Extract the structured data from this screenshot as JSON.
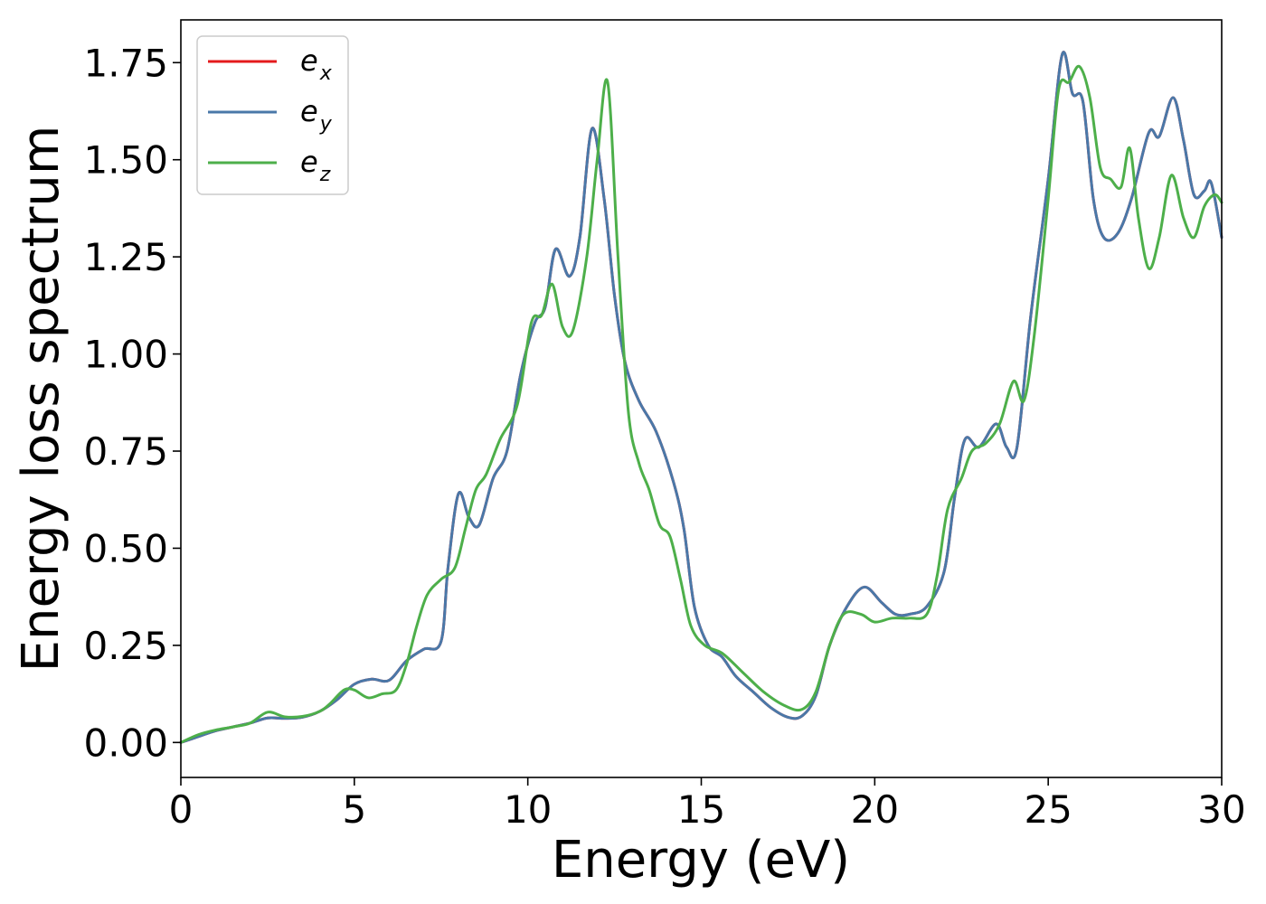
{
  "chart_data": {
    "type": "line",
    "xlabel": "Energy (eV)",
    "ylabel": "Energy loss spectrum",
    "xlim": [
      0,
      30
    ],
    "ylim": [
      -0.09,
      1.86
    ],
    "xticks": [
      0,
      5,
      10,
      15,
      20,
      25,
      30
    ],
    "xtick_labels": [
      "0",
      "5",
      "10",
      "15",
      "20",
      "25",
      "30"
    ],
    "yticks": [
      0.0,
      0.25,
      0.5,
      0.75,
      1.0,
      1.25,
      1.5,
      1.75
    ],
    "ytick_labels": [
      "0.00",
      "0.25",
      "0.50",
      "0.75",
      "1.00",
      "1.25",
      "1.50",
      "1.75"
    ],
    "grid": false,
    "legend_position": "top-left",
    "series": [
      {
        "name": "e",
        "subscript": "x",
        "color": "#e41a1c",
        "points": [
          [
            0,
            0.0
          ],
          [
            0.5,
            0.015
          ],
          [
            1,
            0.03
          ],
          [
            1.5,
            0.04
          ],
          [
            2,
            0.05
          ],
          [
            2.5,
            0.063
          ],
          [
            3,
            0.062
          ],
          [
            3.5,
            0.065
          ],
          [
            4,
            0.08
          ],
          [
            4.5,
            0.11
          ],
          [
            5,
            0.15
          ],
          [
            5.5,
            0.163
          ],
          [
            6,
            0.16
          ],
          [
            6.5,
            0.21
          ],
          [
            7,
            0.24
          ],
          [
            7.5,
            0.26
          ],
          [
            7.7,
            0.45
          ],
          [
            8,
            0.64
          ],
          [
            8.3,
            0.58
          ],
          [
            8.6,
            0.56
          ],
          [
            9,
            0.68
          ],
          [
            9.4,
            0.75
          ],
          [
            9.8,
            0.95
          ],
          [
            10.2,
            1.08
          ],
          [
            10.5,
            1.12
          ],
          [
            10.8,
            1.27
          ],
          [
            11.2,
            1.2
          ],
          [
            11.5,
            1.3
          ],
          [
            11.85,
            1.58
          ],
          [
            12.2,
            1.4
          ],
          [
            12.5,
            1.15
          ],
          [
            12.8,
            0.98
          ],
          [
            13.2,
            0.88
          ],
          [
            13.7,
            0.8
          ],
          [
            14.2,
            0.67
          ],
          [
            14.5,
            0.55
          ],
          [
            14.8,
            0.35
          ],
          [
            15.2,
            0.25
          ],
          [
            15.6,
            0.22
          ],
          [
            16,
            0.17
          ],
          [
            16.5,
            0.13
          ],
          [
            17,
            0.09
          ],
          [
            17.5,
            0.065
          ],
          [
            17.9,
            0.068
          ],
          [
            18.3,
            0.12
          ],
          [
            18.7,
            0.25
          ],
          [
            19.2,
            0.35
          ],
          [
            19.7,
            0.4
          ],
          [
            20.2,
            0.36
          ],
          [
            20.6,
            0.33
          ],
          [
            21,
            0.33
          ],
          [
            21.5,
            0.35
          ],
          [
            22,
            0.44
          ],
          [
            22.3,
            0.63
          ],
          [
            22.6,
            0.78
          ],
          [
            23,
            0.76
          ],
          [
            23.5,
            0.82
          ],
          [
            23.8,
            0.76
          ],
          [
            24.1,
            0.76
          ],
          [
            24.5,
            1.1
          ],
          [
            25,
            1.45
          ],
          [
            25.4,
            1.77
          ],
          [
            25.7,
            1.67
          ],
          [
            26,
            1.65
          ],
          [
            26.3,
            1.4
          ],
          [
            26.6,
            1.3
          ],
          [
            27,
            1.31
          ],
          [
            27.4,
            1.4
          ],
          [
            27.9,
            1.57
          ],
          [
            28.2,
            1.56
          ],
          [
            28.6,
            1.66
          ],
          [
            28.9,
            1.55
          ],
          [
            29.2,
            1.41
          ],
          [
            29.5,
            1.42
          ],
          [
            29.7,
            1.44
          ],
          [
            30,
            1.3
          ]
        ]
      },
      {
        "name": "e",
        "subscript": "y",
        "color": "#4a78a8",
        "points": [
          [
            0,
            0.0
          ],
          [
            0.5,
            0.015
          ],
          [
            1,
            0.03
          ],
          [
            1.5,
            0.04
          ],
          [
            2,
            0.05
          ],
          [
            2.5,
            0.063
          ],
          [
            3,
            0.062
          ],
          [
            3.5,
            0.065
          ],
          [
            4,
            0.08
          ],
          [
            4.5,
            0.11
          ],
          [
            5,
            0.15
          ],
          [
            5.5,
            0.163
          ],
          [
            6,
            0.16
          ],
          [
            6.5,
            0.21
          ],
          [
            7,
            0.24
          ],
          [
            7.5,
            0.26
          ],
          [
            7.7,
            0.45
          ],
          [
            8,
            0.64
          ],
          [
            8.3,
            0.58
          ],
          [
            8.6,
            0.56
          ],
          [
            9,
            0.68
          ],
          [
            9.4,
            0.75
          ],
          [
            9.8,
            0.95
          ],
          [
            10.2,
            1.08
          ],
          [
            10.5,
            1.12
          ],
          [
            10.8,
            1.27
          ],
          [
            11.2,
            1.2
          ],
          [
            11.5,
            1.3
          ],
          [
            11.85,
            1.58
          ],
          [
            12.2,
            1.4
          ],
          [
            12.5,
            1.15
          ],
          [
            12.8,
            0.98
          ],
          [
            13.2,
            0.88
          ],
          [
            13.7,
            0.8
          ],
          [
            14.2,
            0.67
          ],
          [
            14.5,
            0.55
          ],
          [
            14.8,
            0.35
          ],
          [
            15.2,
            0.25
          ],
          [
            15.6,
            0.22
          ],
          [
            16,
            0.17
          ],
          [
            16.5,
            0.13
          ],
          [
            17,
            0.09
          ],
          [
            17.5,
            0.065
          ],
          [
            17.9,
            0.068
          ],
          [
            18.3,
            0.12
          ],
          [
            18.7,
            0.25
          ],
          [
            19.2,
            0.35
          ],
          [
            19.7,
            0.4
          ],
          [
            20.2,
            0.36
          ],
          [
            20.6,
            0.33
          ],
          [
            21,
            0.33
          ],
          [
            21.5,
            0.35
          ],
          [
            22,
            0.44
          ],
          [
            22.3,
            0.63
          ],
          [
            22.6,
            0.78
          ],
          [
            23,
            0.76
          ],
          [
            23.5,
            0.82
          ],
          [
            23.8,
            0.76
          ],
          [
            24.1,
            0.76
          ],
          [
            24.5,
            1.1
          ],
          [
            25,
            1.45
          ],
          [
            25.4,
            1.77
          ],
          [
            25.7,
            1.67
          ],
          [
            26,
            1.65
          ],
          [
            26.3,
            1.4
          ],
          [
            26.6,
            1.3
          ],
          [
            27,
            1.31
          ],
          [
            27.4,
            1.4
          ],
          [
            27.9,
            1.57
          ],
          [
            28.2,
            1.56
          ],
          [
            28.6,
            1.66
          ],
          [
            28.9,
            1.55
          ],
          [
            29.2,
            1.41
          ],
          [
            29.5,
            1.42
          ],
          [
            29.7,
            1.44
          ],
          [
            30,
            1.3
          ]
        ]
      },
      {
        "name": "e",
        "subscript": "z",
        "color": "#4daf4a",
        "points": [
          [
            0,
            0.0
          ],
          [
            0.5,
            0.02
          ],
          [
            1,
            0.032
          ],
          [
            1.5,
            0.04
          ],
          [
            2,
            0.05
          ],
          [
            2.5,
            0.078
          ],
          [
            3,
            0.066
          ],
          [
            3.5,
            0.067
          ],
          [
            4,
            0.08
          ],
          [
            4.3,
            0.1
          ],
          [
            4.7,
            0.135
          ],
          [
            5,
            0.135
          ],
          [
            5.4,
            0.115
          ],
          [
            5.8,
            0.125
          ],
          [
            6.2,
            0.135
          ],
          [
            6.5,
            0.2
          ],
          [
            6.8,
            0.3
          ],
          [
            7.1,
            0.38
          ],
          [
            7.5,
            0.42
          ],
          [
            7.9,
            0.45
          ],
          [
            8.2,
            0.55
          ],
          [
            8.5,
            0.65
          ],
          [
            8.8,
            0.69
          ],
          [
            9.2,
            0.78
          ],
          [
            9.7,
            0.87
          ],
          [
            10.1,
            1.08
          ],
          [
            10.4,
            1.1
          ],
          [
            10.7,
            1.18
          ],
          [
            11,
            1.07
          ],
          [
            11.3,
            1.06
          ],
          [
            11.7,
            1.25
          ],
          [
            12,
            1.5
          ],
          [
            12.3,
            1.7
          ],
          [
            12.6,
            1.25
          ],
          [
            12.9,
            0.85
          ],
          [
            13.2,
            0.72
          ],
          [
            13.5,
            0.65
          ],
          [
            13.8,
            0.56
          ],
          [
            14.1,
            0.53
          ],
          [
            14.4,
            0.42
          ],
          [
            14.7,
            0.3
          ],
          [
            15.1,
            0.25
          ],
          [
            15.6,
            0.23
          ],
          [
            16.2,
            0.18
          ],
          [
            16.8,
            0.13
          ],
          [
            17.4,
            0.095
          ],
          [
            17.9,
            0.085
          ],
          [
            18.3,
            0.13
          ],
          [
            18.7,
            0.25
          ],
          [
            19.1,
            0.33
          ],
          [
            19.6,
            0.33
          ],
          [
            20,
            0.31
          ],
          [
            20.5,
            0.32
          ],
          [
            21,
            0.32
          ],
          [
            21.5,
            0.33
          ],
          [
            21.8,
            0.43
          ],
          [
            22.1,
            0.6
          ],
          [
            22.5,
            0.68
          ],
          [
            22.8,
            0.75
          ],
          [
            23.2,
            0.77
          ],
          [
            23.6,
            0.82
          ],
          [
            24,
            0.93
          ],
          [
            24.3,
            0.88
          ],
          [
            24.6,
            1.05
          ],
          [
            25,
            1.4
          ],
          [
            25.3,
            1.68
          ],
          [
            25.6,
            1.7
          ],
          [
            25.9,
            1.74
          ],
          [
            26.2,
            1.66
          ],
          [
            26.5,
            1.48
          ],
          [
            26.8,
            1.45
          ],
          [
            27.1,
            1.43
          ],
          [
            27.35,
            1.53
          ],
          [
            27.6,
            1.35
          ],
          [
            27.9,
            1.22
          ],
          [
            28.2,
            1.3
          ],
          [
            28.55,
            1.46
          ],
          [
            28.9,
            1.35
          ],
          [
            29.2,
            1.3
          ],
          [
            29.5,
            1.38
          ],
          [
            29.8,
            1.41
          ],
          [
            30,
            1.39
          ]
        ]
      }
    ]
  }
}
